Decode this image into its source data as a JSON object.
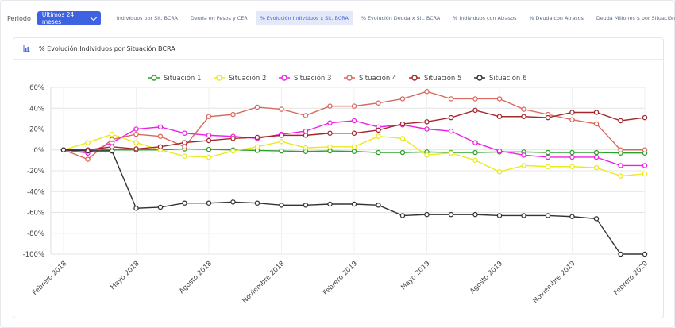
{
  "filters": {
    "period_label": "Periodo",
    "period_value": "Últimos 24 meses"
  },
  "tabs": [
    {
      "label": "Individuos por Sit. BCRA",
      "active": false
    },
    {
      "label": "Deuda en Pesos y CER",
      "active": false
    },
    {
      "label": "% Evolución Individuos x Sit. BCRA",
      "active": true
    },
    {
      "label": "% Evolución Deuda x Sit. BCRA",
      "active": false
    },
    {
      "label": "% Individuos con Atrasos",
      "active": false
    },
    {
      "label": "% Deuda con Atrasos",
      "active": false
    },
    {
      "label": "Deuda Millones $ por Situación BCRA",
      "active": false
    }
  ],
  "card": {
    "title": "% Evolución Individuos por Situación BCRA",
    "icon": "bar-chart-icon"
  },
  "chart_data": {
    "type": "line",
    "title": "",
    "xlabel": "",
    "ylabel": "",
    "ylim": [
      -100,
      60
    ],
    "y_ticks": [
      60,
      40,
      20,
      0,
      -20,
      -40,
      -60,
      -80,
      -100
    ],
    "y_tick_suffix": "%",
    "x_tick_labels": [
      "Febrero 2018",
      "Mayo 2018",
      "Agosto 2018",
      "Noviembre 2018",
      "Febrero 2019",
      "Mayo 2019",
      "Agosto 2019",
      "Noviembre 2019",
      "Febrero 2020"
    ],
    "grid": true,
    "legend": "top",
    "x": [
      "2018-02",
      "2018-03",
      "2018-04",
      "2018-05",
      "2018-06",
      "2018-07",
      "2018-08",
      "2018-09",
      "2018-10",
      "2018-11",
      "2018-12",
      "2019-01",
      "2019-02",
      "2019-03",
      "2019-04",
      "2019-05",
      "2019-06",
      "2019-07",
      "2019-08",
      "2019-09",
      "2019-10",
      "2019-11",
      "2019-12",
      "2020-01",
      "2020-02"
    ],
    "series": [
      {
        "name": "Situación 1",
        "color": "#2ea02e",
        "values": [
          0,
          0,
          0,
          0,
          0,
          1,
          0.5,
          0,
          -0.5,
          -1,
          -1.5,
          -1,
          -1.5,
          -2.5,
          -2.5,
          -2,
          -2.5,
          -2.5,
          -2,
          -2,
          -2.5,
          -2.5,
          -2.5,
          -3,
          -3
        ]
      },
      {
        "name": "Situación 2",
        "color": "#eaea1e",
        "values": [
          0,
          7,
          15,
          7,
          0,
          -6,
          -7,
          -1,
          3,
          8,
          2,
          3,
          3,
          13,
          11,
          -5,
          -3,
          -10,
          -21,
          -15,
          -16,
          -16,
          -17,
          -25,
          -23
        ]
      },
      {
        "name": "Situación 3",
        "color": "#f01ee6",
        "values": [
          0,
          -3,
          7,
          20,
          22,
          16,
          14,
          13,
          11,
          15,
          18,
          26,
          28,
          22,
          24,
          20,
          18,
          7,
          -1,
          -5,
          -7,
          -7,
          -7,
          -15,
          -15
        ]
      },
      {
        "name": "Situación 4",
        "color": "#d9695f",
        "values": [
          0,
          -9,
          10,
          15,
          13,
          3,
          32,
          34,
          41,
          39,
          33,
          42,
          42,
          45,
          49,
          56,
          49,
          49,
          49,
          39,
          34,
          29,
          25,
          0,
          0
        ]
      },
      {
        "name": "Situación 5",
        "color": "#a3282d",
        "values": [
          0,
          0,
          3,
          1,
          3,
          7,
          9,
          11,
          12,
          14,
          14,
          16,
          16,
          19,
          25,
          27,
          31,
          38,
          32,
          32,
          31,
          36,
          36,
          28,
          31
        ]
      },
      {
        "name": "Situación 6",
        "color": "#333333",
        "values": [
          0,
          -1,
          -1,
          -56,
          -55,
          -51,
          -51,
          -50,
          -51,
          -53,
          -53,
          -52,
          -52,
          -53,
          -63,
          -62,
          -62,
          -62,
          -63,
          -63,
          -63,
          -64,
          -66,
          -100,
          -100
        ]
      }
    ]
  }
}
